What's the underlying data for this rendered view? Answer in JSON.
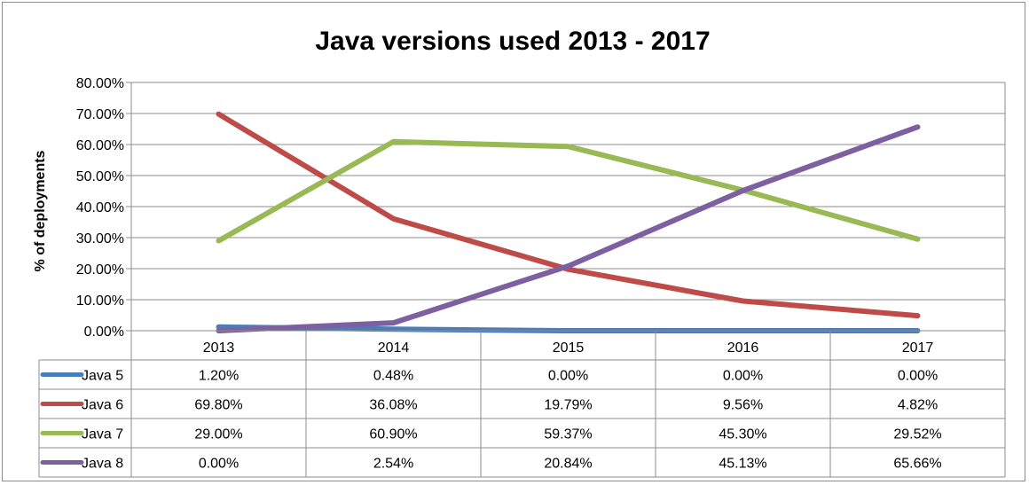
{
  "chart_data": {
    "type": "line",
    "title": "Java versions used 2013 - 2017",
    "xlabel": "",
    "ylabel": "% of deployments",
    "ylim": [
      0,
      80
    ],
    "y_ticks": [
      0,
      10,
      20,
      30,
      40,
      50,
      60,
      70,
      80
    ],
    "y_tick_labels": [
      "0.00%",
      "10.00%",
      "20.00%",
      "30.00%",
      "40.00%",
      "50.00%",
      "60.00%",
      "70.00%",
      "80.00%"
    ],
    "grid": true,
    "legend": "data table below chart",
    "categories": [
      "2013",
      "2014",
      "2015",
      "2016",
      "2017"
    ],
    "series": [
      {
        "name": "Java 5",
        "color": "#4a7ebb",
        "values": [
          1.2,
          0.48,
          0.0,
          0.0,
          0.0
        ],
        "labels": [
          "1.20%",
          "0.48%",
          "0.00%",
          "0.00%",
          "0.00%"
        ]
      },
      {
        "name": "Java 6",
        "color": "#be4b48",
        "values": [
          69.8,
          36.08,
          19.79,
          9.56,
          4.82
        ],
        "labels": [
          "69.80%",
          "36.08%",
          "19.79%",
          "9.56%",
          "4.82%"
        ]
      },
      {
        "name": "Java 7",
        "color": "#98b954",
        "values": [
          29.0,
          60.9,
          59.37,
          45.3,
          29.52
        ],
        "labels": [
          "29.00%",
          "60.90%",
          "59.37%",
          "45.30%",
          "29.52%"
        ]
      },
      {
        "name": "Java 8",
        "color": "#7d60a0",
        "values": [
          0.0,
          2.54,
          20.84,
          45.13,
          65.66
        ],
        "labels": [
          "0.00%",
          "2.54%",
          "20.84%",
          "45.13%",
          "65.66%"
        ]
      }
    ]
  }
}
